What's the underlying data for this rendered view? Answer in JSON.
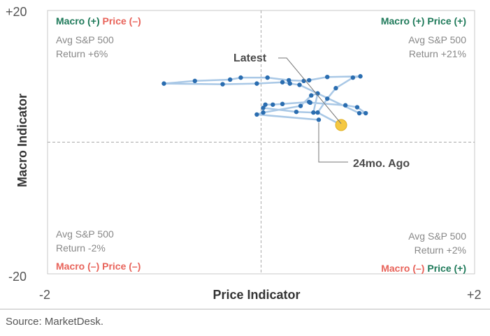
{
  "source": "Source: MarketDesk.",
  "colors": {
    "green": "#1f7a5a",
    "red": "#e8635a",
    "point": "#2a6db0",
    "line": "#a9c8e6",
    "latest": "#f5c842",
    "gray": "#888888"
  },
  "chart_data": {
    "type": "scatter",
    "title": "",
    "xlabel": "Price Indicator",
    "ylabel": "Macro Indicator",
    "xlim": [
      -2,
      2
    ],
    "ylim": [
      -20,
      20
    ],
    "xtick_labels": [
      "-2",
      "+2"
    ],
    "ytick_labels": [
      "+20",
      "-20"
    ],
    "grid": false,
    "crosshair": "dashed at x=0 and y=0",
    "quadrants": {
      "top_left": {
        "macro": "Macro (+)",
        "price": "Price (–)",
        "return_label": "Avg S&P 500",
        "return_value": "Return +6%"
      },
      "top_right": {
        "macro": "Macro (+)",
        "price": "Price (+)",
        "return_label": "Avg S&P 500",
        "return_value": "Return +21%"
      },
      "bottom_left": {
        "macro": "Macro (–)",
        "price": "Price (–)",
        "return_label": "Avg S&P 500",
        "return_value": "Return -2%"
      },
      "bottom_right": {
        "macro": "Macro (–)",
        "price": "Price (+)",
        "return_label": "Avg S&P 500",
        "return_value": "Return +2%"
      }
    },
    "annotations": {
      "latest": "Latest",
      "start": "24mo. Ago"
    },
    "series": [
      {
        "points": [
          [
            0.75,
            2.6
          ],
          [
            0.53,
            4.5
          ],
          [
            0.62,
            6.6
          ],
          [
            0.7,
            8.2
          ],
          [
            0.86,
            9.8
          ],
          [
            0.93,
            10.0
          ],
          [
            0.62,
            9.9
          ],
          [
            0.45,
            9.4
          ],
          [
            0.4,
            9.3
          ],
          [
            0.26,
            9.4
          ],
          [
            0.06,
            9.8
          ],
          [
            -0.19,
            9.8
          ],
          [
            -0.29,
            9.5
          ],
          [
            -0.62,
            9.3
          ],
          [
            -0.91,
            8.9
          ],
          [
            -0.36,
            8.8
          ],
          [
            -0.04,
            8.9
          ],
          [
            0.2,
            9.1
          ],
          [
            0.27,
            8.9
          ],
          [
            0.36,
            8.7
          ],
          [
            0.92,
            4.4
          ],
          [
            0.98,
            4.4
          ],
          [
            0.9,
            5.3
          ],
          [
            0.79,
            5.6
          ],
          [
            0.46,
            6.0
          ],
          [
            0.45,
            6.1
          ],
          [
            0.2,
            5.8
          ],
          [
            0.11,
            5.7
          ],
          [
            0.04,
            5.7
          ],
          [
            0.02,
            5.2
          ],
          [
            0.33,
            4.6
          ],
          [
            0.49,
            4.5
          ],
          [
            0.53,
            7.4
          ],
          [
            0.47,
            7.1
          ],
          [
            0.37,
            5.5
          ],
          [
            0.02,
            4.5
          ],
          [
            -0.04,
            4.2
          ],
          [
            0.54,
            3.4
          ]
        ]
      }
    ]
  }
}
